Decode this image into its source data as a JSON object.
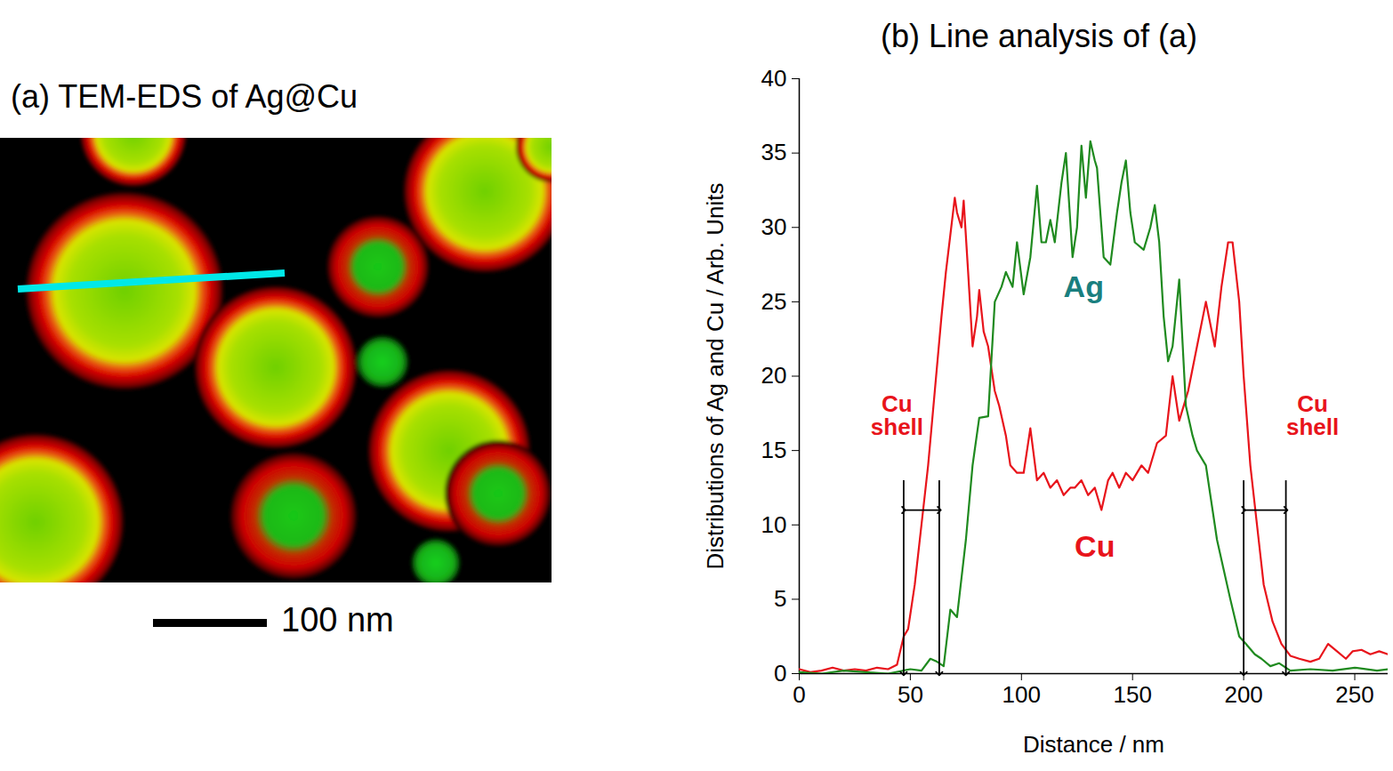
{
  "image_panel": {
    "title": "(a) TEM-EDS of Ag@Cu",
    "scale_bar_label": "100 nm"
  },
  "chart_data": {
    "type": "line",
    "title": "(b) Line analysis of (a)",
    "x_label": "Distance / nm",
    "y_label": "Distributions of Ag and Cu / Arb. Units",
    "xlim": [
      0,
      265
    ],
    "xticks": [
      0,
      50,
      100,
      150,
      200,
      250
    ],
    "ylim": [
      0,
      40
    ],
    "yticks": [
      0,
      5,
      10,
      15,
      20,
      25,
      30,
      35,
      40
    ],
    "grid": false,
    "series": [
      {
        "name": "Cu",
        "color": "#e8141b",
        "x": [
          0,
          5,
          10,
          15,
          20,
          25,
          30,
          35,
          40,
          44,
          47,
          49,
          52,
          55,
          58,
          61,
          64,
          66,
          68,
          70,
          71,
          73,
          74,
          76,
          78,
          80,
          81,
          83,
          85,
          88,
          90,
          93,
          95,
          98,
          101,
          104,
          107,
          110,
          113,
          116,
          119,
          122,
          124,
          127,
          130,
          133,
          136,
          139,
          141,
          144,
          147,
          150,
          154,
          157,
          161,
          165,
          168,
          171,
          175,
          179,
          183,
          187,
          190,
          193,
          195,
          198,
          200,
          203,
          206,
          209,
          213,
          217,
          221,
          225,
          230,
          234,
          238,
          242,
          246,
          249,
          253,
          257,
          261,
          265
        ],
        "values": [
          0.3,
          0.1,
          0.2,
          0.4,
          0.2,
          0.3,
          0.2,
          0.4,
          0.3,
          0.6,
          2.5,
          3,
          6,
          10,
          14,
          19,
          24,
          27,
          29.5,
          32,
          31,
          30,
          31.8,
          27,
          22,
          24,
          25.8,
          23,
          22,
          19,
          18,
          16,
          14,
          13.5,
          13.5,
          16.5,
          13,
          13.5,
          12.5,
          13,
          12,
          12.5,
          12.5,
          13,
          12,
          12.5,
          11,
          13,
          13.5,
          12.5,
          13.5,
          13,
          14,
          13.5,
          15.5,
          16,
          20,
          17,
          19,
          22,
          25,
          22,
          26,
          29,
          29,
          25,
          20,
          14,
          10,
          6,
          3.5,
          2,
          1.2,
          1,
          0.8,
          1,
          2,
          1.5,
          1,
          1.5,
          1.6,
          1.3,
          1.5,
          1.3
        ]
      },
      {
        "name": "Ag",
        "color": "#1f8a1f",
        "x": [
          0,
          10,
          20,
          30,
          40,
          50,
          55,
          59,
          62,
          65,
          68,
          71,
          75,
          78,
          81,
          85,
          88,
          91,
          93,
          96,
          98,
          101,
          104,
          107,
          109,
          111,
          113,
          115,
          118,
          120,
          123,
          125,
          127,
          129,
          131,
          133,
          134,
          137,
          140,
          143,
          145,
          147,
          149,
          151,
          155,
          158,
          160,
          162,
          164,
          166,
          168,
          171,
          174,
          177,
          179,
          183,
          186,
          188,
          191,
          194,
          198,
          201,
          205,
          208,
          212,
          216,
          221,
          230,
          240,
          250,
          260,
          265
        ],
        "values": [
          0.1,
          0,
          0.2,
          0.1,
          0,
          0.3,
          0.2,
          1,
          0.8,
          0.5,
          4.3,
          3.8,
          9,
          14,
          17.2,
          17.3,
          25,
          26,
          27,
          26,
          29,
          25.5,
          28,
          32.8,
          29,
          29,
          30.5,
          29,
          33,
          35,
          28,
          30,
          35.5,
          32,
          35.8,
          34.5,
          34,
          28,
          27.5,
          31,
          33,
          34.5,
          31,
          29,
          28.5,
          30,
          31.5,
          29,
          24,
          21,
          22,
          26.5,
          18,
          16,
          15,
          14,
          11,
          9,
          7,
          5,
          2.5,
          2,
          1.3,
          1,
          0.5,
          0.7,
          0.2,
          0.3,
          0.2,
          0.4,
          0.2,
          0.3
        ]
      }
    ],
    "annotations": [
      {
        "text": "Ag",
        "x": 128,
        "y": 26,
        "color": "#1a7f7f"
      },
      {
        "text": "Cu",
        "x": 133,
        "y": 8.5,
        "color": "#e8141b"
      },
      {
        "text": "Cu shell",
        "x": 44,
        "y": 17.3,
        "color": "#e8141b"
      },
      {
        "text": "Cu shell",
        "x": 231,
        "y": 17.3,
        "color": "#e8141b"
      }
    ],
    "shell_ranges": [
      {
        "from": 47,
        "to": 63,
        "y": 11,
        "line_top": 13
      },
      {
        "from": 200,
        "to": 219,
        "y": 11,
        "line_top": 13
      }
    ]
  }
}
